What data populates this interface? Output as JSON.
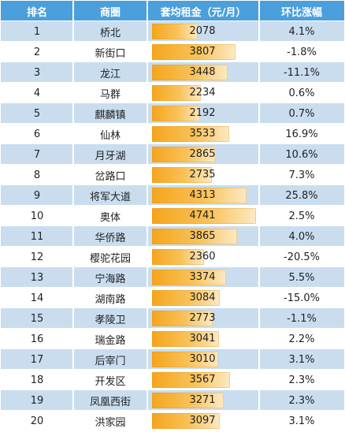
{
  "header": {
    "rank": "排名",
    "area": "商圈",
    "rent": "套均租金（元/月）",
    "change": "环比涨幅"
  },
  "colors": {
    "header_bg": "#4a9fdc",
    "row_odd": "#c9ddef",
    "row_even": "#ffffff",
    "bar": "#f6a51c"
  },
  "chart_data": {
    "type": "table",
    "columns": [
      "排名",
      "商圈",
      "套均租金（元/月）",
      "环比涨幅"
    ],
    "rows": [
      {
        "rank": "1",
        "area": "桥北",
        "rent": 2078,
        "rent_label": "2078",
        "change": "4.1%"
      },
      {
        "rank": "2",
        "area": "新街口",
        "rent": 3807,
        "rent_label": "3807",
        "change": "-1.8%"
      },
      {
        "rank": "3",
        "area": "龙江",
        "rent": 3448,
        "rent_label": "3448",
        "change": "-11.1%"
      },
      {
        "rank": "4",
        "area": "马群",
        "rent": 2234,
        "rent_label": "2234",
        "change": "0.6%"
      },
      {
        "rank": "5",
        "area": "麒麟镇",
        "rent": 2192,
        "rent_label": "2192",
        "change": "0.7%"
      },
      {
        "rank": "6",
        "area": "仙林",
        "rent": 3533,
        "rent_label": "3533",
        "change": "16.9%"
      },
      {
        "rank": "7",
        "area": "月牙湖",
        "rent": 2865,
        "rent_label": "2865",
        "change": "10.6%"
      },
      {
        "rank": "8",
        "area": "岔路口",
        "rent": 2735,
        "rent_label": "2735",
        "change": "7.3%"
      },
      {
        "rank": "9",
        "area": "将军大道",
        "rent": 4313,
        "rent_label": "4313",
        "change": "25.8%"
      },
      {
        "rank": "10",
        "area": "奥体",
        "rent": 4741,
        "rent_label": "4741",
        "change": "2.5%"
      },
      {
        "rank": "11",
        "area": "华侨路",
        "rent": 3865,
        "rent_label": "3865",
        "change": "4.0%"
      },
      {
        "rank": "12",
        "area": "樱驼花园",
        "rent": 2360,
        "rent_label": "2360",
        "change": "-20.5%"
      },
      {
        "rank": "13",
        "area": "宁海路",
        "rent": 3374,
        "rent_label": "3374",
        "change": "5.5%"
      },
      {
        "rank": "14",
        "area": "湖南路",
        "rent": 3084,
        "rent_label": "3084",
        "change": "-15.0%"
      },
      {
        "rank": "15",
        "area": "孝陵卫",
        "rent": 2773,
        "rent_label": "2773",
        "change": "-1.1%"
      },
      {
        "rank": "16",
        "area": "瑞金路",
        "rent": 3041,
        "rent_label": "3041",
        "change": "2.2%"
      },
      {
        "rank": "17",
        "area": "后宰门",
        "rent": 3010,
        "rent_label": "3010",
        "change": "3.1%"
      },
      {
        "rank": "18",
        "area": "开发区",
        "rent": 3567,
        "rent_label": "3567",
        "change": "2.3%"
      },
      {
        "rank": "19",
        "area": "凤凰西街",
        "rent": 3271,
        "rent_label": "3271",
        "change": "2.3%"
      },
      {
        "rank": "20",
        "area": "洪家园",
        "rent": 3097,
        "rent_label": "3097",
        "change": "3.1%"
      }
    ]
  }
}
